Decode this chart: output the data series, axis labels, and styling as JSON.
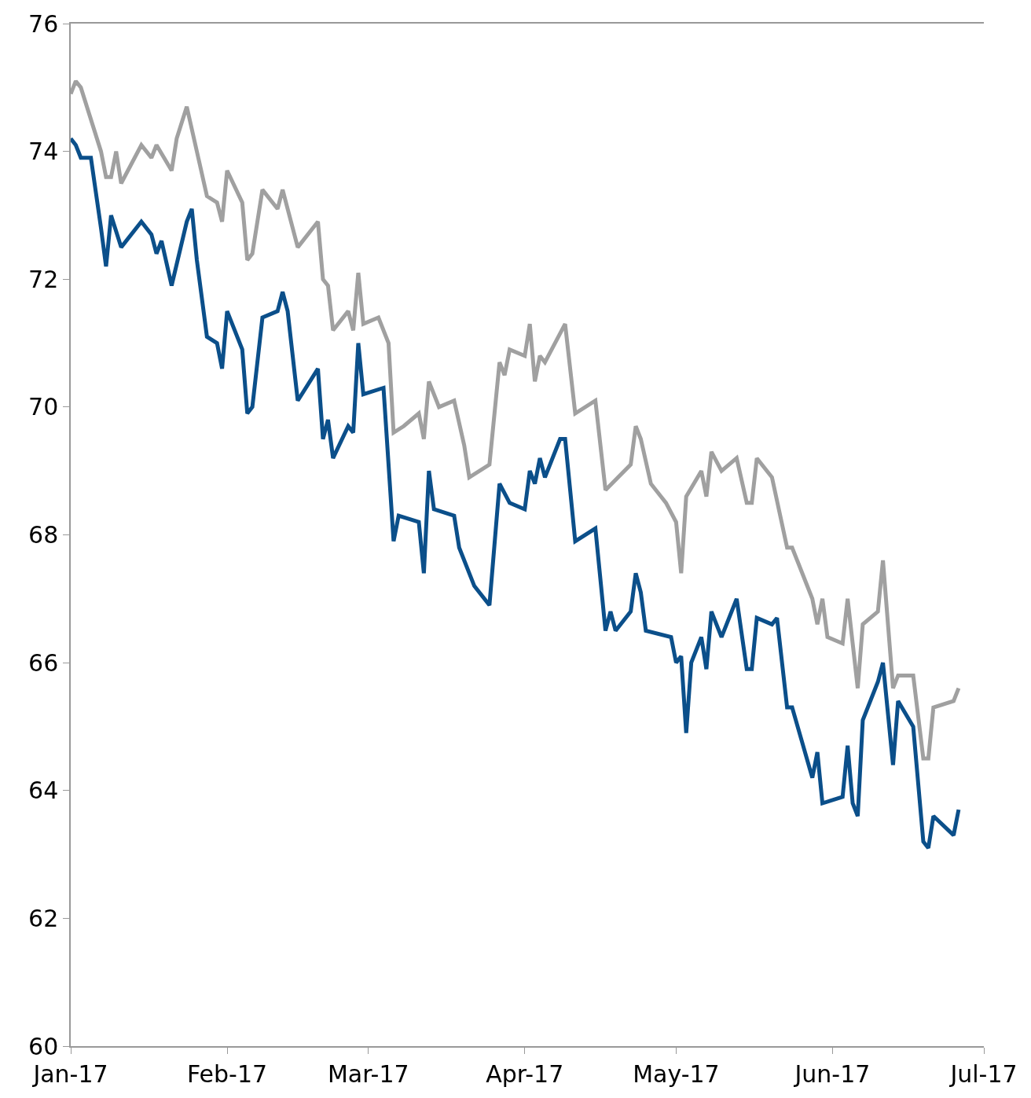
{
  "chart_data": {
    "type": "line",
    "xlim": [
      "2017-01-01",
      "2017-07-01"
    ],
    "xticks": [
      {
        "value": "2017-01-01",
        "label": "Jan-17"
      },
      {
        "value": "2017-02-01",
        "label": "Feb-17"
      },
      {
        "value": "2017-03-01",
        "label": "Mar-17"
      },
      {
        "value": "2017-04-01",
        "label": "Apr-17"
      },
      {
        "value": "2017-05-01",
        "label": "May-17"
      },
      {
        "value": "2017-06-01",
        "label": "Jun-17"
      },
      {
        "value": "2017-07-01",
        "label": "Jul-17"
      }
    ],
    "ylim": [
      60,
      76
    ],
    "yticks": [
      60,
      62,
      64,
      66,
      68,
      70,
      72,
      74,
      76
    ],
    "marker": "none",
    "line_style": "solid",
    "series": [
      {
        "color": "#a0a0a0",
        "x": [
          "2017-01-01",
          "2017-01-02",
          "2017-01-03",
          "2017-01-07",
          "2017-01-08",
          "2017-01-09",
          "2017-01-10",
          "2017-01-11",
          "2017-01-15",
          "2017-01-17",
          "2017-01-18",
          "2017-01-21",
          "2017-01-22",
          "2017-01-24",
          "2017-01-28",
          "2017-01-30",
          "2017-01-31",
          "2017-02-01",
          "2017-02-04",
          "2017-02-05",
          "2017-02-06",
          "2017-02-08",
          "2017-02-11",
          "2017-02-12",
          "2017-02-13",
          "2017-02-15",
          "2017-02-19",
          "2017-02-20",
          "2017-02-21",
          "2017-02-22",
          "2017-02-25",
          "2017-02-26",
          "2017-02-27",
          "2017-02-28",
          "2017-03-03",
          "2017-03-05",
          "2017-03-06",
          "2017-03-08",
          "2017-03-11",
          "2017-03-12",
          "2017-03-13",
          "2017-03-15",
          "2017-03-18",
          "2017-03-20",
          "2017-03-21",
          "2017-03-25",
          "2017-03-27",
          "2017-03-28",
          "2017-03-29",
          "2017-04-01",
          "2017-04-02",
          "2017-04-03",
          "2017-04-04",
          "2017-04-05",
          "2017-04-09",
          "2017-04-11",
          "2017-04-15",
          "2017-04-17",
          "2017-04-22",
          "2017-04-23",
          "2017-04-24",
          "2017-04-26",
          "2017-04-28",
          "2017-04-29",
          "2017-05-01",
          "2017-05-02",
          "2017-05-03",
          "2017-05-06",
          "2017-05-07",
          "2017-05-08",
          "2017-05-10",
          "2017-05-13",
          "2017-05-15",
          "2017-05-16",
          "2017-05-17",
          "2017-05-20",
          "2017-05-23",
          "2017-05-24",
          "2017-05-28",
          "2017-05-29",
          "2017-05-30",
          "2017-05-31",
          "2017-06-03",
          "2017-06-04",
          "2017-06-06",
          "2017-06-07",
          "2017-06-10",
          "2017-06-11",
          "2017-06-13",
          "2017-06-14",
          "2017-06-17",
          "2017-06-19",
          "2017-06-20",
          "2017-06-21",
          "2017-06-25",
          "2017-06-26"
        ],
        "values": [
          74.9,
          75.1,
          75.0,
          74.0,
          73.6,
          73.6,
          74.0,
          73.5,
          74.1,
          73.9,
          74.1,
          73.7,
          74.2,
          74.7,
          73.3,
          73.2,
          72.9,
          73.7,
          73.2,
          72.3,
          72.4,
          73.4,
          73.1,
          73.4,
          73.1,
          72.5,
          72.9,
          72.0,
          71.9,
          71.2,
          71.5,
          71.2,
          72.1,
          71.3,
          71.4,
          71.0,
          69.6,
          69.7,
          69.9,
          69.5,
          70.4,
          70.0,
          70.1,
          69.4,
          68.9,
          69.1,
          70.7,
          70.5,
          70.9,
          70.8,
          71.3,
          70.4,
          70.8,
          70.7,
          71.3,
          69.9,
          70.1,
          68.7,
          69.1,
          69.7,
          69.5,
          68.8,
          68.6,
          68.5,
          68.2,
          67.4,
          68.6,
          69.0,
          68.6,
          69.3,
          69.0,
          69.2,
          68.5,
          68.5,
          69.2,
          68.9,
          67.8,
          67.8,
          67.0,
          66.6,
          67.0,
          66.4,
          66.3,
          67.0,
          65.6,
          66.6,
          66.8,
          67.6,
          65.6,
          65.8,
          65.8,
          64.5,
          64.5,
          65.3,
          65.4,
          65.6
        ]
      },
      {
        "color": "#0b4f8a",
        "x": [
          "2017-01-01",
          "2017-01-02",
          "2017-01-03",
          "2017-01-05",
          "2017-01-07",
          "2017-01-08",
          "2017-01-09",
          "2017-01-11",
          "2017-01-15",
          "2017-01-17",
          "2017-01-18",
          "2017-01-19",
          "2017-01-21",
          "2017-01-24",
          "2017-01-25",
          "2017-01-26",
          "2017-01-28",
          "2017-01-30",
          "2017-01-31",
          "2017-02-01",
          "2017-02-04",
          "2017-02-05",
          "2017-02-06",
          "2017-02-08",
          "2017-02-11",
          "2017-02-12",
          "2017-02-13",
          "2017-02-15",
          "2017-02-19",
          "2017-02-20",
          "2017-02-21",
          "2017-02-22",
          "2017-02-25",
          "2017-02-26",
          "2017-02-27",
          "2017-02-28",
          "2017-03-04",
          "2017-03-06",
          "2017-03-07",
          "2017-03-11",
          "2017-03-12",
          "2017-03-13",
          "2017-03-14",
          "2017-03-18",
          "2017-03-19",
          "2017-03-22",
          "2017-03-25",
          "2017-03-27",
          "2017-03-29",
          "2017-04-01",
          "2017-04-02",
          "2017-04-03",
          "2017-04-04",
          "2017-04-05",
          "2017-04-08",
          "2017-04-09",
          "2017-04-11",
          "2017-04-15",
          "2017-04-17",
          "2017-04-18",
          "2017-04-19",
          "2017-04-22",
          "2017-04-23",
          "2017-04-24",
          "2017-04-25",
          "2017-04-30",
          "2017-05-01",
          "2017-05-02",
          "2017-05-03",
          "2017-05-04",
          "2017-05-06",
          "2017-05-07",
          "2017-05-08",
          "2017-05-10",
          "2017-05-13",
          "2017-05-15",
          "2017-05-16",
          "2017-05-17",
          "2017-05-20",
          "2017-05-21",
          "2017-05-23",
          "2017-05-24",
          "2017-05-28",
          "2017-05-29",
          "2017-05-30",
          "2017-06-03",
          "2017-06-04",
          "2017-06-05",
          "2017-06-06",
          "2017-06-07",
          "2017-06-10",
          "2017-06-11",
          "2017-06-13",
          "2017-06-14",
          "2017-06-17",
          "2017-06-19",
          "2017-06-20",
          "2017-06-21",
          "2017-06-25",
          "2017-06-26"
        ],
        "values": [
          74.2,
          74.1,
          73.9,
          73.9,
          72.8,
          72.2,
          73.0,
          72.5,
          72.9,
          72.7,
          72.4,
          72.6,
          71.9,
          72.9,
          73.1,
          72.3,
          71.1,
          71.0,
          70.6,
          71.5,
          70.9,
          69.9,
          70.0,
          71.4,
          71.5,
          71.8,
          71.5,
          70.1,
          70.6,
          69.5,
          69.8,
          69.2,
          69.7,
          69.6,
          71.0,
          70.2,
          70.3,
          67.9,
          68.3,
          68.2,
          67.4,
          69.0,
          68.4,
          68.3,
          67.8,
          67.2,
          66.9,
          68.8,
          68.5,
          68.4,
          69.0,
          68.8,
          69.2,
          68.9,
          69.5,
          69.5,
          67.9,
          68.1,
          66.5,
          66.8,
          66.5,
          66.8,
          67.4,
          67.1,
          66.5,
          66.4,
          66.0,
          66.1,
          64.9,
          66.0,
          66.4,
          65.9,
          66.8,
          66.4,
          67.0,
          65.9,
          65.9,
          66.7,
          66.6,
          66.7,
          65.3,
          65.3,
          64.2,
          64.6,
          63.8,
          63.9,
          64.7,
          63.8,
          63.6,
          65.1,
          65.7,
          66.0,
          64.4,
          65.4,
          65.0,
          63.2,
          63.1,
          63.6,
          63.3,
          63.7
        ]
      }
    ]
  }
}
